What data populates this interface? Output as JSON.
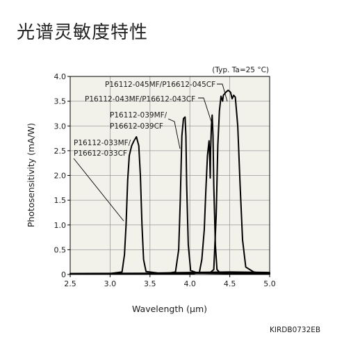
{
  "page": {
    "title": "光谱灵敏度特性",
    "doc_code": "KIRDB0732EB"
  },
  "chart_data": {
    "type": "line",
    "xlabel": "Wavelength (μm)",
    "ylabel": "Photosensitivity (mA/W)",
    "xlim": [
      2.5,
      5.0
    ],
    "ylim": [
      0,
      4.0
    ],
    "x_ticks": [
      "2.5",
      "3.0",
      "3.5",
      "4.0",
      "4.5",
      "5.0"
    ],
    "y_ticks": [
      "0",
      "0.5",
      "1.0",
      "1.5",
      "2.0",
      "2.5",
      "3.0",
      "3.5",
      "4.0"
    ],
    "grid": true,
    "condition_note": "(Typ. Ta=25 °C)",
    "line_color": "#000000",
    "plot_background": "#f2f2ea",
    "series": [
      {
        "name": "P16112-033MF/P16612-033CF",
        "label_lines": [
          "P16112-033MF/",
          "P16612-033CF"
        ],
        "points": [
          [
            2.5,
            0.01
          ],
          [
            3.0,
            0.02
          ],
          [
            3.15,
            0.05
          ],
          [
            3.18,
            0.4
          ],
          [
            3.2,
            1.0
          ],
          [
            3.22,
            1.9
          ],
          [
            3.24,
            2.4
          ],
          [
            3.27,
            2.6
          ],
          [
            3.3,
            2.7
          ],
          [
            3.33,
            2.78
          ],
          [
            3.36,
            2.6
          ],
          [
            3.38,
            2.0
          ],
          [
            3.4,
            1.0
          ],
          [
            3.42,
            0.3
          ],
          [
            3.45,
            0.06
          ],
          [
            3.6,
            0.03
          ],
          [
            4.0,
            0.04
          ],
          [
            4.5,
            0.05
          ],
          [
            5.0,
            0.04
          ]
        ]
      },
      {
        "name": "P16112-039MF/P16612-039CF",
        "label_lines": [
          "P16112-039MF/",
          "P16612-039CF"
        ],
        "points": [
          [
            2.5,
            0.01
          ],
          [
            3.7,
            0.02
          ],
          [
            3.82,
            0.05
          ],
          [
            3.86,
            0.5
          ],
          [
            3.88,
            1.5
          ],
          [
            3.9,
            2.8
          ],
          [
            3.92,
            3.15
          ],
          [
            3.94,
            3.18
          ],
          [
            3.95,
            2.8
          ],
          [
            3.96,
            1.8
          ],
          [
            3.98,
            0.6
          ],
          [
            4.01,
            0.08
          ],
          [
            4.1,
            0.03
          ],
          [
            4.5,
            0.02
          ],
          [
            5.0,
            0.02
          ]
        ]
      },
      {
        "name": "P16112-043MF/P16612-043CF",
        "label_lines": [
          "P16112-043MF/P16612-043CF"
        ],
        "points": [
          [
            2.5,
            0.01
          ],
          [
            4.05,
            0.02
          ],
          [
            4.12,
            0.05
          ],
          [
            4.15,
            0.3
          ],
          [
            4.18,
            0.9
          ],
          [
            4.2,
            1.7
          ],
          [
            4.22,
            2.4
          ],
          [
            4.24,
            2.7
          ],
          [
            4.25,
            2.3
          ],
          [
            4.255,
            1.95
          ],
          [
            4.26,
            2.5
          ],
          [
            4.27,
            3.0
          ],
          [
            4.28,
            3.22
          ],
          [
            4.29,
            2.8
          ],
          [
            4.3,
            1.8
          ],
          [
            4.32,
            0.6
          ],
          [
            4.34,
            0.1
          ],
          [
            4.38,
            0.03
          ],
          [
            5.0,
            0.02
          ]
        ]
      },
      {
        "name": "P16112-045MF/P16612-045CF",
        "label_lines": [
          "P16112-045MF/P16612-045CF"
        ],
        "points": [
          [
            2.5,
            0.02
          ],
          [
            4.25,
            0.03
          ],
          [
            4.3,
            0.1
          ],
          [
            4.33,
            1.2
          ],
          [
            4.35,
            2.6
          ],
          [
            4.37,
            3.3
          ],
          [
            4.39,
            3.6
          ],
          [
            4.41,
            3.5
          ],
          [
            4.42,
            3.62
          ],
          [
            4.45,
            3.68
          ],
          [
            4.48,
            3.72
          ],
          [
            4.51,
            3.68
          ],
          [
            4.53,
            3.55
          ],
          [
            4.55,
            3.62
          ],
          [
            4.57,
            3.58
          ],
          [
            4.6,
            3.0
          ],
          [
            4.63,
            1.8
          ],
          [
            4.66,
            0.7
          ],
          [
            4.7,
            0.15
          ],
          [
            4.8,
            0.05
          ],
          [
            4.9,
            0.02
          ],
          [
            5.0,
            0.01
          ]
        ]
      }
    ]
  }
}
